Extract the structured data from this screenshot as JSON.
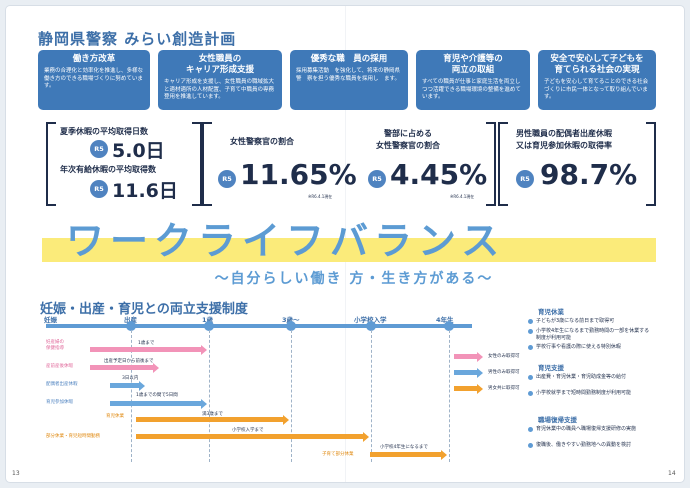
{
  "title": "静岡県警察 みらい創造計画",
  "cards": [
    {
      "title": "働き方改革",
      "body": "業務の合理化と効率化を推進し、多様な働き方のできる職場づくりに努めています。"
    },
    {
      "title": "女性職員の\nキャリア形成支援",
      "body": "キャリア形成を支援し、女性職員の職域拡大と適材適所の人材配置、子育て中職員の専務登用を推進しています。"
    },
    {
      "title": "優秀な職　員の採用",
      "body": "採用募集活動　を強化して、将来の静岡県警　察を担う優秀な職員を採用し　ます。"
    },
    {
      "title": "育児や介護等の\n両立の取組",
      "body": "すべての職員が仕事と家庭生活を両立しつつ活躍できる職場環境の整備を進めています。"
    },
    {
      "title": "安全で安心して子どもを\n育てられる社会の実現",
      "body": "子どもを安心して育てることのできる社会づくりに市民一体となって取り組んでいます。"
    }
  ],
  "stats": {
    "summer_label": "夏季休暇の平均取得日数",
    "summer_value": "5.0日",
    "annual_label": "年次有給休暇の平均取得数",
    "annual_value": "11.6日",
    "women_ratio_label": "女性警察官の割合",
    "women_ratio_value": "11.65%",
    "women_ratio_note": "※R6.4.1現在",
    "women_manager_label": "警部に占める\n女性警察官の割合",
    "women_manager_value": "4.45%",
    "women_manager_note": "※R6.4.1現在",
    "male_leave_label": "男性職員の配偶者出産休暇\n又は育児参加休暇の取得率",
    "male_leave_value": "98.7%",
    "r5": "R5"
  },
  "banner": {
    "main": "ワークライフバランス",
    "sub": "～自分らしい働き 方・生き方がある～"
  },
  "section_title": "妊娠・出産・育児との両立支援制度",
  "timeline": {
    "points": [
      "妊娠",
      "出産",
      "1歳",
      "3歳〜",
      "小学校入学",
      "4年生"
    ]
  },
  "rows": [
    {
      "label": "妊産婦の\n保健指導",
      "text": "1歳まで"
    },
    {
      "label": "産前産後休暇",
      "text": "出産予定日から前後まで"
    },
    {
      "label": "配偶者出産休暇",
      "text": "3日以内"
    },
    {
      "label": "育児参加休暇",
      "text": "1歳までの間で5日間"
    },
    {
      "label": "育児休業",
      "text": "満3歳まで"
    },
    {
      "label": "部分休業・育児短時間勤務",
      "text": "小学校入学まで"
    },
    {
      "label": "子育て部分休業",
      "text": "小学校4年生になるまで"
    }
  ],
  "right_rows": [
    "女性のみ取得可",
    "男性のみ取得可",
    "男女共に取得可"
  ],
  "legend": [
    {
      "heading": "育児休業",
      "items": [
        "子どもが3歳になる前日まで取得可",
        "小学校4年生になるまで勤務時間の一部を休業する制度が利用可能",
        "学校行事や看護の際に使える特別休暇"
      ]
    },
    {
      "heading": "育児支援",
      "items": [
        "出産費・育児休業・育児助成金等の給付",
        "小学校就学まで短時間勤務制度が利用可能"
      ]
    },
    {
      "heading": "職場復帰支援",
      "items": [
        "育児休業中の職員へ職場復帰支援研修の実施",
        "復職後、働きやすい勤務地への異動を検討"
      ]
    }
  ],
  "page_numbers": {
    "left": "13",
    "right": "14"
  },
  "colors": {
    "primary": "#3f79b8",
    "light_blue": "#5c9bd3",
    "yellow": "#fbeb7a",
    "pink": "#f293b8",
    "orange": "#f2a12e"
  }
}
